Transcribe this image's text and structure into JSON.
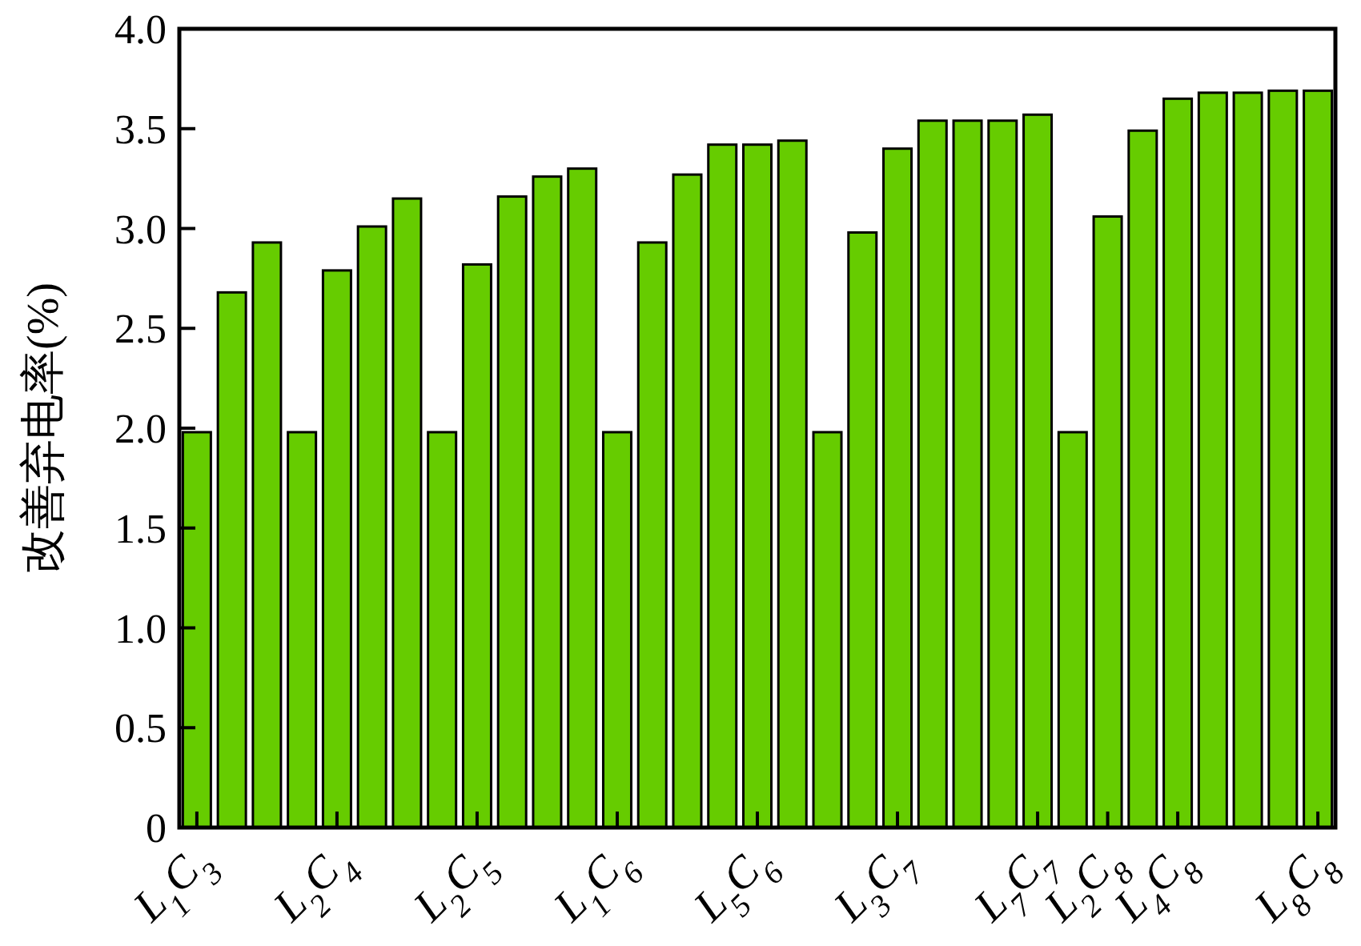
{
  "chart_data": {
    "type": "bar",
    "ylabel": "改善弃电率(%)",
    "categories": [
      "L$_{1}$C$_{3}$",
      null,
      null,
      null,
      "L$_{2}$C$_{4}$",
      null,
      null,
      null,
      "L$_{2}$C$_{5}$",
      null,
      null,
      null,
      "L$_{1}$C$_{6}$",
      null,
      null,
      null,
      "L$_{5}$C$_{6}$",
      null,
      null,
      null,
      "L$_{3}$C$_{7}$",
      null,
      null,
      null,
      "L$_{7}$C$_{7}$",
      null,
      "L$_{2}$C$_{8}$",
      null,
      "L$_{4}$C$_{8}$",
      null,
      null,
      null,
      "L$_{8}$C$_{8}$"
    ],
    "values": [
      1.98,
      2.68,
      2.93,
      1.98,
      2.79,
      3.01,
      3.15,
      1.98,
      2.82,
      3.16,
      3.26,
      3.3,
      1.98,
      2.93,
      3.27,
      3.42,
      3.42,
      3.44,
      1.98,
      2.98,
      3.4,
      3.54,
      3.54,
      3.54,
      3.57,
      1.98,
      3.06,
      3.49,
      3.65,
      3.68,
      3.68,
      3.69,
      3.69
    ],
    "color": "#66cc00",
    "ylim": [
      0,
      4
    ],
    "yticks": [
      0,
      0.5,
      {
        "value": 1,
        "label": "1.0"
      },
      1.5,
      {
        "value": 2,
        "label": "2.0"
      },
      2.5,
      {
        "value": 3,
        "label": "3.0"
      },
      3.5,
      {
        "value": 4,
        "label": "4.0"
      }
    ],
    "grid": false
  }
}
